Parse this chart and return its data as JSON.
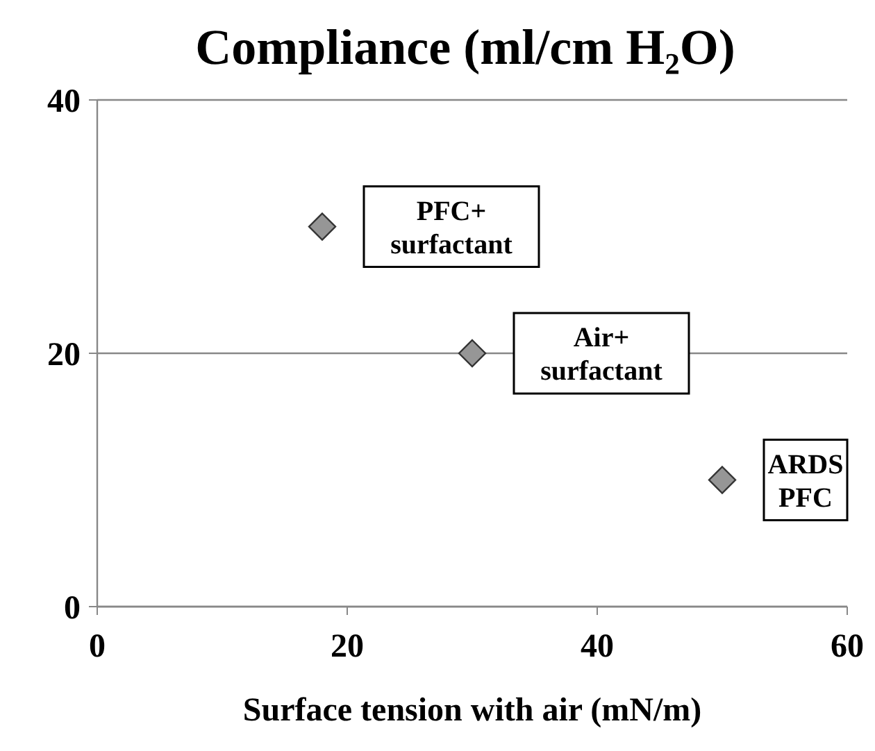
{
  "chart_data": {
    "type": "scatter",
    "title": "Compliance (ml/cm H₂O)",
    "xlabel": "Surface tension with air (mN/m)",
    "x": [
      18,
      30,
      50
    ],
    "series": [
      {
        "color": "#969696",
        "values": [
          30,
          20,
          10
        ]
      }
    ],
    "marker": "diamond",
    "grid": "y",
    "xlim": [
      0,
      60
    ],
    "xticks": [
      0,
      20,
      40,
      60
    ],
    "ylim": [
      0,
      40
    ],
    "yticks": [
      0,
      20,
      40
    ],
    "annotations": [
      {
        "text": "PFC+ surfactant",
        "x": 18,
        "y": 30
      },
      {
        "text": "Air+ surfactant",
        "x": 30,
        "y": 20
      },
      {
        "text": "ARDS PFC",
        "x": 50,
        "y": 10
      }
    ]
  }
}
